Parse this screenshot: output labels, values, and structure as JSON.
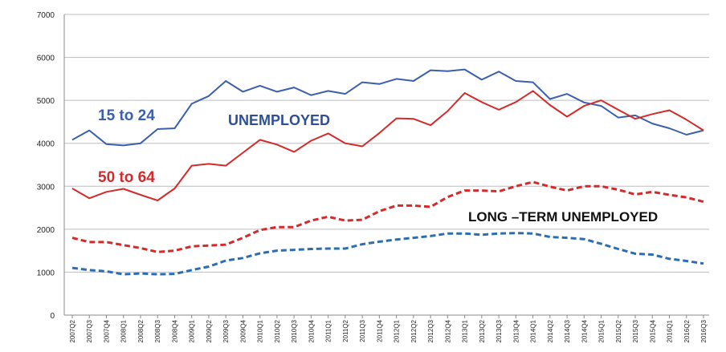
{
  "chart_data": {
    "type": "line",
    "ylim": [
      0,
      7000
    ],
    "yticks": [
      0,
      1000,
      2000,
      3000,
      4000,
      5000,
      6000,
      7000
    ],
    "grid": true,
    "categories": [
      "2007Q2",
      "2007Q3",
      "2007Q4",
      "2008Q1",
      "2008Q2",
      "2008Q3",
      "2008Q4",
      "2009Q1",
      "2009Q2",
      "2009Q3",
      "2009Q4",
      "2010Q1",
      "2010Q2",
      "2010Q3",
      "2010Q4",
      "2011Q1",
      "2011Q2",
      "2011Q3",
      "2011Q4",
      "2012Q1",
      "2012Q2",
      "2012Q3",
      "2012Q4",
      "2013Q1",
      "2013Q2",
      "2013Q3",
      "2013Q4",
      "2014Q1",
      "2014Q2",
      "2014Q3",
      "2014Q4",
      "2015Q1",
      "2015Q2",
      "2015Q3",
      "2015Q4",
      "2016Q1",
      "2016Q2",
      "2016Q3"
    ],
    "series": [
      {
        "name": "15 to 24",
        "group": "UNEMPLOYED",
        "style": "solid",
        "color": "#3a5fae",
        "values": [
          4080,
          4300,
          3980,
          3950,
          4000,
          4330,
          4350,
          4920,
          5100,
          5450,
          5200,
          5340,
          5200,
          5300,
          5120,
          5220,
          5150,
          5420,
          5380,
          5500,
          5450,
          5700,
          5680,
          5720,
          5480,
          5670,
          5450,
          5420,
          5030,
          5150,
          4950,
          4870,
          4600,
          4650,
          4460,
          4350,
          4200,
          4300
        ]
      },
      {
        "name": "50 to 64",
        "group": "UNEMPLOYED",
        "style": "solid",
        "color": "#d42a2a",
        "values": [
          2950,
          2720,
          2870,
          2940,
          2800,
          2670,
          2950,
          3480,
          3520,
          3480,
          3780,
          4080,
          3970,
          3800,
          4060,
          4230,
          4000,
          3930,
          4240,
          4580,
          4570,
          4420,
          4750,
          5170,
          4960,
          4780,
          4960,
          5220,
          4890,
          4620,
          4870,
          5000,
          4780,
          4570,
          4680,
          4770,
          4550,
          4300
        ]
      },
      {
        "name": "50 to 64",
        "group": "LONG –TERM UNEMPLOYED",
        "style": "dashed",
        "color": "#d42a2a",
        "values": [
          1800,
          1700,
          1700,
          1630,
          1560,
          1470,
          1500,
          1600,
          1620,
          1640,
          1800,
          1980,
          2050,
          2050,
          2200,
          2290,
          2200,
          2220,
          2420,
          2550,
          2550,
          2520,
          2750,
          2900,
          2900,
          2880,
          3000,
          3100,
          2990,
          2900,
          3000,
          3000,
          2920,
          2810,
          2870,
          2800,
          2740,
          2640
        ]
      },
      {
        "name": "15 to 24",
        "group": "LONG –TERM UNEMPLOYED",
        "style": "dashed",
        "color": "#2a6db5",
        "values": [
          1100,
          1050,
          1020,
          950,
          970,
          950,
          960,
          1050,
          1130,
          1270,
          1330,
          1440,
          1500,
          1520,
          1540,
          1550,
          1550,
          1650,
          1710,
          1760,
          1800,
          1840,
          1900,
          1900,
          1870,
          1900,
          1910,
          1900,
          1820,
          1800,
          1770,
          1660,
          1540,
          1430,
          1410,
          1310,
          1260,
          1200
        ]
      }
    ],
    "annotations": [
      {
        "text": "15 to 24",
        "color": "#3a5fae"
      },
      {
        "text": "UNEMPLOYED",
        "color": "#2e4f96"
      },
      {
        "text": "50 to 64",
        "color": "#d42a2a"
      },
      {
        "text": "LONG –TERM UNEMPLOYED",
        "color": "#111111"
      }
    ]
  }
}
